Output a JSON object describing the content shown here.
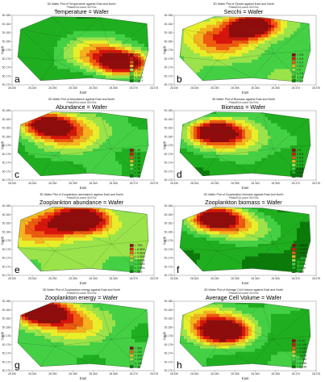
{
  "chart_data": [
    {
      "type": "heatmap",
      "letter": "a",
      "header_line1": "3D Wafer Plot of Temperature against East and North",
      "header_line2": "Pmda2014-coord 31v*24c",
      "title": "Temperature = Wafer",
      "xlabel": "East",
      "ylabel": "North",
      "xticks": [
        "28.330",
        "28.345",
        "28.350",
        "28.355",
        "28.360",
        "28.365",
        "28.370",
        "28.375"
      ],
      "yticks": [
        "50.186",
        "50.184",
        "50.182",
        "50.180",
        "50.178",
        "50.176",
        "50.174",
        "50.172",
        "50.170"
      ],
      "legend": [
        "> 26",
        "< 25.7",
        "< 25.2",
        "< 24.7",
        "< 24.2",
        "< 23.7",
        "< 23.2",
        "< 22.7"
      ],
      "palette": [
        "#0b7a0b",
        "#1fae1f",
        "#44d044",
        "#9be34a",
        "#e8ee2a",
        "#f4b21e",
        "#ee5a10",
        "#d7150c",
        "#8f0c0c"
      ],
      "hot": [
        0.78,
        0.68
      ],
      "warm": [
        0.6,
        0.55
      ],
      "base": 0.15
    },
    {
      "type": "heatmap",
      "letter": "b",
      "header_line1": "3D Wafer Plot of Secchi against East and North",
      "header_line2": "Pmda2014-coord 31v*24c",
      "title": "Secchi = Wafer",
      "xlabel": "East",
      "ylabel": "North",
      "xticks": [
        "28.330",
        "28.345",
        "28.350",
        "28.355",
        "28.360",
        "28.365",
        "28.370",
        "28.375"
      ],
      "yticks": [
        "50.186",
        "50.184",
        "50.182",
        "50.180",
        "50.178",
        "50.176",
        "50.174",
        "50.172",
        "50.170"
      ],
      "legend": [
        "> 2.8",
        "< 2.6",
        "< 2.4",
        "< 2.2",
        "< 2",
        "< 1.8",
        "< 1.6",
        "< 1.4"
      ],
      "palette": [
        "#0b7a0b",
        "#1fae1f",
        "#44d044",
        "#9be34a",
        "#e8ee2a",
        "#f4b21e",
        "#ee5a10",
        "#d7150c",
        "#8f0c0c"
      ],
      "hot": [
        0.55,
        0.15
      ],
      "warm": [
        0.3,
        0.35
      ],
      "base": 0.3
    },
    {
      "type": "heatmap",
      "letter": "c",
      "header_line1": "3D Wafer Plot of Abundance against East and North",
      "header_line2": "Pmda2014-coord 31v*24c",
      "title": "Abundance = Wafer",
      "xlabel": "East",
      "ylabel": "North",
      "xticks": [
        "28.330",
        "28.345",
        "28.350",
        "28.355",
        "28.360",
        "28.365",
        "28.370",
        "28.375"
      ],
      "yticks": [
        "50.186",
        "50.184",
        "50.182",
        "50.180",
        "50.178",
        "50.176",
        "50.174",
        "50.172",
        "50.170"
      ],
      "legend": [
        "> 45",
        "< 43",
        "< 38",
        "< 33",
        "< 28",
        "< 23",
        "< 18",
        "< 13"
      ],
      "palette": [
        "#0b7a0b",
        "#1fae1f",
        "#44d044",
        "#9be34a",
        "#e8ee2a",
        "#f4b21e",
        "#ee5a10",
        "#d7150c",
        "#8f0c0c"
      ],
      "hot": [
        0.25,
        0.2
      ],
      "warm": [
        0.45,
        0.35
      ],
      "base": 0.2
    },
    {
      "type": "heatmap",
      "letter": "d",
      "header_line1": "3D Wafer Plot of Biomass against East and North",
      "header_line2": "Pmda2014-coord 31v*24c",
      "title": "Biomass = Wafer",
      "xlabel": "East",
      "ylabel": "North",
      "xticks": [
        "28.330",
        "28.345",
        "28.350",
        "28.355",
        "28.360",
        "28.365",
        "28.370",
        "28.375"
      ],
      "yticks": [
        "50.186",
        "50.184",
        "50.182",
        "50.180",
        "50.178",
        "50.176",
        "50.174",
        "50.172",
        "50.170"
      ],
      "legend": [
        "> 6",
        "< 5.8",
        "< 4.8",
        "< 3.8",
        "< 2.8",
        "< 1.8",
        "< 0.8",
        "< 0.2"
      ],
      "palette": [
        "#0b7a0b",
        "#1fae1f",
        "#44d044",
        "#9be34a",
        "#e8ee2a",
        "#f4b21e",
        "#ee5a10",
        "#d7150c",
        "#8f0c0c"
      ],
      "hot": [
        0.28,
        0.3
      ],
      "warm": [
        0.45,
        0.4
      ],
      "base": 0.15
    },
    {
      "type": "heatmap",
      "letter": "e",
      "header_line1": "3D Wafer Plot of Zooplankton abundance against East and North",
      "header_line2": "Pmda2014-coord 31v*24c",
      "title": "Zooplankton abundance = Wafer",
      "xlabel": "East",
      "ylabel": "North",
      "xticks": [
        "28.330",
        "28.345",
        "28.350",
        "28.355",
        "28.360",
        "28.365",
        "28.370",
        "28.375"
      ],
      "yticks": [
        "50.186",
        "50.184",
        "50.182",
        "50.180",
        "50.178",
        "50.176",
        "50.174",
        "50.172",
        "50.170"
      ],
      "legend": [
        "> 7E6",
        "< 6.5E6",
        "< 5.5E6",
        "< 4.5E6",
        "< 3.5E6",
        "< 2.5E6",
        "< 1.5E6",
        "< 5E5"
      ],
      "palette": [
        "#0b7a0b",
        "#1fae1f",
        "#44d044",
        "#9be34a",
        "#e8ee2a",
        "#f4b21e",
        "#ee5a10",
        "#d7150c",
        "#8f0c0c"
      ],
      "hot": [
        0.5,
        0.2
      ],
      "warm": [
        0.25,
        0.3
      ],
      "base": 0.35
    },
    {
      "type": "heatmap",
      "letter": "f",
      "header_line1": "3D Wafer Plot of Zooplankton biomass against East and North",
      "header_line2": "Pmda2014-coord 31v*24c",
      "title": "Zooplankton biomass = Wafer",
      "xlabel": "East",
      "ylabel": "North",
      "xticks": [
        "28.330",
        "28.345",
        "28.350",
        "28.355",
        "28.360",
        "28.365",
        "28.370",
        "28.375"
      ],
      "yticks": [
        "50.186",
        "50.184",
        "50.182",
        "50.180",
        "50.178",
        "50.176",
        "50.174",
        "50.172",
        "50.170"
      ],
      "legend": [
        "> 18000",
        "< 17000",
        "< 14000",
        "< 11000",
        "< 8000",
        "< 5000",
        "< 2000",
        "< 500"
      ],
      "palette": [
        "#0b7a0b",
        "#1fae1f",
        "#44d044",
        "#9be34a",
        "#e8ee2a",
        "#f4b21e",
        "#ee5a10",
        "#d7150c",
        "#8f0c0c"
      ],
      "hot": [
        0.28,
        0.18
      ],
      "warm": [
        0.45,
        0.3
      ],
      "base": 0.1
    },
    {
      "type": "heatmap",
      "letter": "g",
      "header_line1": "3D Wafer Plot of Zooplankton energy against East and North",
      "header_line2": "Pmda2014-coord 31v*24c",
      "title": "Zooplankton energy = Wafer",
      "xlabel": "East",
      "ylabel": "North",
      "xticks": [
        "28.330",
        "28.345",
        "28.350",
        "28.355",
        "28.360",
        "28.365",
        "28.370",
        "28.375"
      ],
      "yticks": [
        "50.186",
        "50.184",
        "50.182",
        "50.180",
        "50.178",
        "50.176",
        "50.174",
        "50.172",
        "50.170"
      ],
      "legend": [
        "> 500",
        "< 440",
        "< 340",
        "< 240",
        "< 140",
        "< 40"
      ],
      "palette": [
        "#0b7a0b",
        "#1fae1f",
        "#44d044",
        "#9be34a",
        "#e8ee2a",
        "#f4b21e",
        "#ee5a10",
        "#d7150c",
        "#8f0c0c"
      ],
      "hot": [
        0.2,
        0.15
      ],
      "warm": [
        0.4,
        0.3
      ],
      "base": 0.25
    },
    {
      "type": "heatmap",
      "letter": "h",
      "header_line1": "3D Wafer Plot of Average Cell Volume against East and North",
      "header_line2": "Pmda2014-coord 31v*24c",
      "title": "Average Cell Volume = Wafer",
      "xlabel": "East",
      "ylabel": "North",
      "xticks": [
        "28.330",
        "28.345",
        "28.350",
        "28.355",
        "28.360",
        "28.365",
        "28.370",
        "28.375"
      ],
      "yticks": [
        "50.186",
        "50.184",
        "50.182",
        "50.180",
        "50.178",
        "50.176",
        "50.174",
        "50.172",
        "50.170"
      ],
      "legend": [
        "> 0.12",
        "< 0.105",
        "< 0.095",
        "< 0.085",
        "< 0.075",
        "< 0.065",
        "< 0.055",
        "< 0.045"
      ],
      "palette": [
        "#0b7a0b",
        "#1fae1f",
        "#44d044",
        "#9be34a",
        "#e8ee2a",
        "#f4b21e",
        "#ee5a10",
        "#d7150c",
        "#8f0c0c"
      ],
      "hot": [
        0.35,
        0.45
      ],
      "warm": [
        0.25,
        0.3
      ],
      "base": 0.2
    }
  ]
}
